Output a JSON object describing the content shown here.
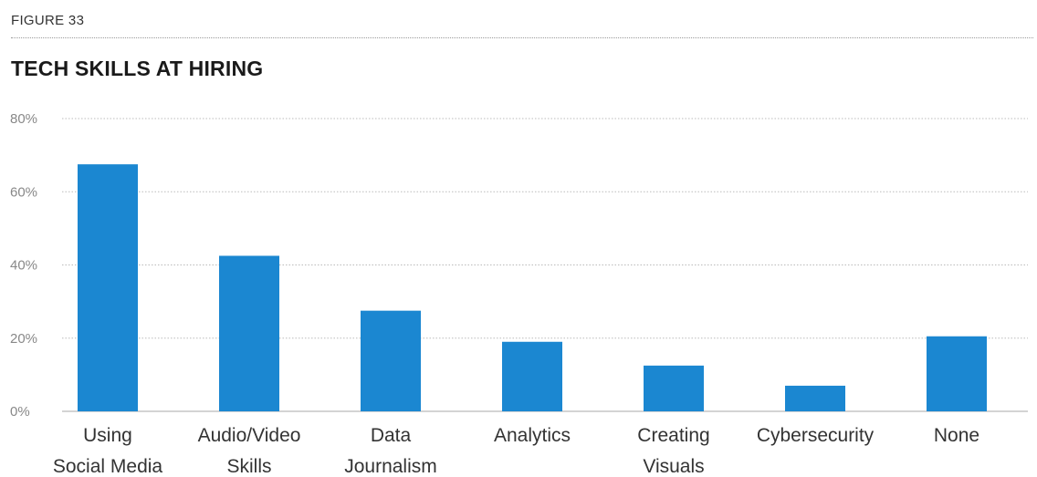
{
  "figure": {
    "label": "FIGURE 33"
  },
  "chart_data": {
    "type": "bar",
    "title": "TECH SKILLS AT HIRING",
    "categories": [
      [
        "Using",
        "Social Media"
      ],
      [
        "Audio/Video",
        "Skills"
      ],
      [
        "Data",
        "Journalism"
      ],
      [
        "Analytics"
      ],
      [
        "Creating",
        "Visuals"
      ],
      [
        "Cybersecurity"
      ],
      [
        "None"
      ]
    ],
    "values": [
      67.5,
      42.5,
      27.5,
      19,
      12.5,
      7,
      20.5
    ],
    "ylim": [
      0,
      80
    ],
    "yticks": [
      0,
      20,
      40,
      60,
      80
    ],
    "ytick_labels": [
      "0%",
      "20%",
      "40%",
      "60%",
      "80%"
    ],
    "grid": true,
    "bar_color": "#1b87d1"
  }
}
